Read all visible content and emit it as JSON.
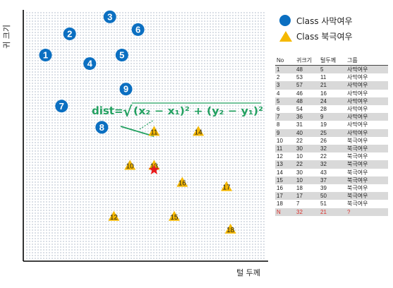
{
  "chart_data": {
    "type": "scatter",
    "xlabel": "털 두께",
    "ylabel": "귀 크기",
    "formula": {
      "lhs": "dist=",
      "radicand": "(x₂ − x₁)² + (y₂ − y₁)²"
    },
    "legend": [
      {
        "label": "Class 사막여우",
        "shape": "circle",
        "color": "#0b6fc1"
      },
      {
        "label": "Class 북극여우",
        "shape": "triangle",
        "color": "#f5b800"
      }
    ],
    "query_point": {
      "label": "N",
      "x": 21,
      "y": 32,
      "class": "?",
      "color": "#e8191c"
    },
    "points": [
      {
        "no": "1",
        "ear": 48,
        "fur": 5,
        "class": "사막여우",
        "shape": "circle"
      },
      {
        "no": "2",
        "ear": 53,
        "fur": 11,
        "class": "사막여우",
        "shape": "circle"
      },
      {
        "no": "3",
        "ear": 57,
        "fur": 21,
        "class": "사막여우",
        "shape": "circle"
      },
      {
        "no": "4",
        "ear": 46,
        "fur": 16,
        "class": "사막여우",
        "shape": "circle"
      },
      {
        "no": "5",
        "ear": 48,
        "fur": 24,
        "class": "사막여우",
        "shape": "circle"
      },
      {
        "no": "6",
        "ear": 54,
        "fur": 28,
        "class": "사막여우",
        "shape": "circle"
      },
      {
        "no": "7",
        "ear": 36,
        "fur": 9,
        "class": "사막여우",
        "shape": "circle"
      },
      {
        "no": "8",
        "ear": 31,
        "fur": 19,
        "class": "사막여우",
        "shape": "circle"
      },
      {
        "no": "9",
        "ear": 40,
        "fur": 25,
        "class": "사막여우",
        "shape": "circle"
      },
      {
        "no": "10",
        "ear": 22,
        "fur": 26,
        "class": "북극여우",
        "shape": "triangle"
      },
      {
        "no": "11",
        "ear": 30,
        "fur": 32,
        "class": "북극여우",
        "shape": "triangle"
      },
      {
        "no": "12",
        "ear": 10,
        "fur": 22,
        "class": "북극여우",
        "shape": "triangle"
      },
      {
        "no": "13",
        "ear": 22,
        "fur": 32,
        "class": "북극여우",
        "shape": "triangle"
      },
      {
        "no": "14",
        "ear": 30,
        "fur": 43,
        "class": "북극여우",
        "shape": "triangle"
      },
      {
        "no": "15",
        "ear": 10,
        "fur": 37,
        "class": "북극여우",
        "shape": "triangle"
      },
      {
        "no": "16",
        "ear": 18,
        "fur": 39,
        "class": "북극여우",
        "shape": "triangle"
      },
      {
        "no": "17",
        "ear": 17,
        "fur": 50,
        "class": "북극여우",
        "shape": "triangle"
      },
      {
        "no": "18",
        "ear": 7,
        "fur": 51,
        "class": "북극여우",
        "shape": "triangle"
      }
    ]
  },
  "table": {
    "headers": [
      "No",
      "귀크기",
      "털두께",
      "그룹"
    ],
    "rows": [
      [
        "1",
        "48",
        "5",
        "사막여우"
      ],
      [
        "2",
        "53",
        "11",
        "사막여우"
      ],
      [
        "3",
        "57",
        "21",
        "사막여우"
      ],
      [
        "4",
        "46",
        "16",
        "사막여우"
      ],
      [
        "5",
        "48",
        "24",
        "사막여우"
      ],
      [
        "6",
        "54",
        "28",
        "사막여우"
      ],
      [
        "7",
        "36",
        "9",
        "사막여우"
      ],
      [
        "8",
        "31",
        "19",
        "사막여우"
      ],
      [
        "9",
        "40",
        "25",
        "사막여우"
      ],
      [
        "10",
        "22",
        "26",
        "북극여우"
      ],
      [
        "11",
        "30",
        "32",
        "북극여우"
      ],
      [
        "12",
        "10",
        "22",
        "북극여우"
      ],
      [
        "13",
        "22",
        "32",
        "북극여우"
      ],
      [
        "14",
        "30",
        "43",
        "북극여우"
      ],
      [
        "15",
        "10",
        "37",
        "북극여우"
      ],
      [
        "16",
        "18",
        "39",
        "북극여우"
      ],
      [
        "17",
        "17",
        "50",
        "북극여우"
      ],
      [
        "18",
        "7",
        "51",
        "북극여우"
      ],
      [
        "N",
        "32",
        "21",
        "?"
      ]
    ]
  }
}
